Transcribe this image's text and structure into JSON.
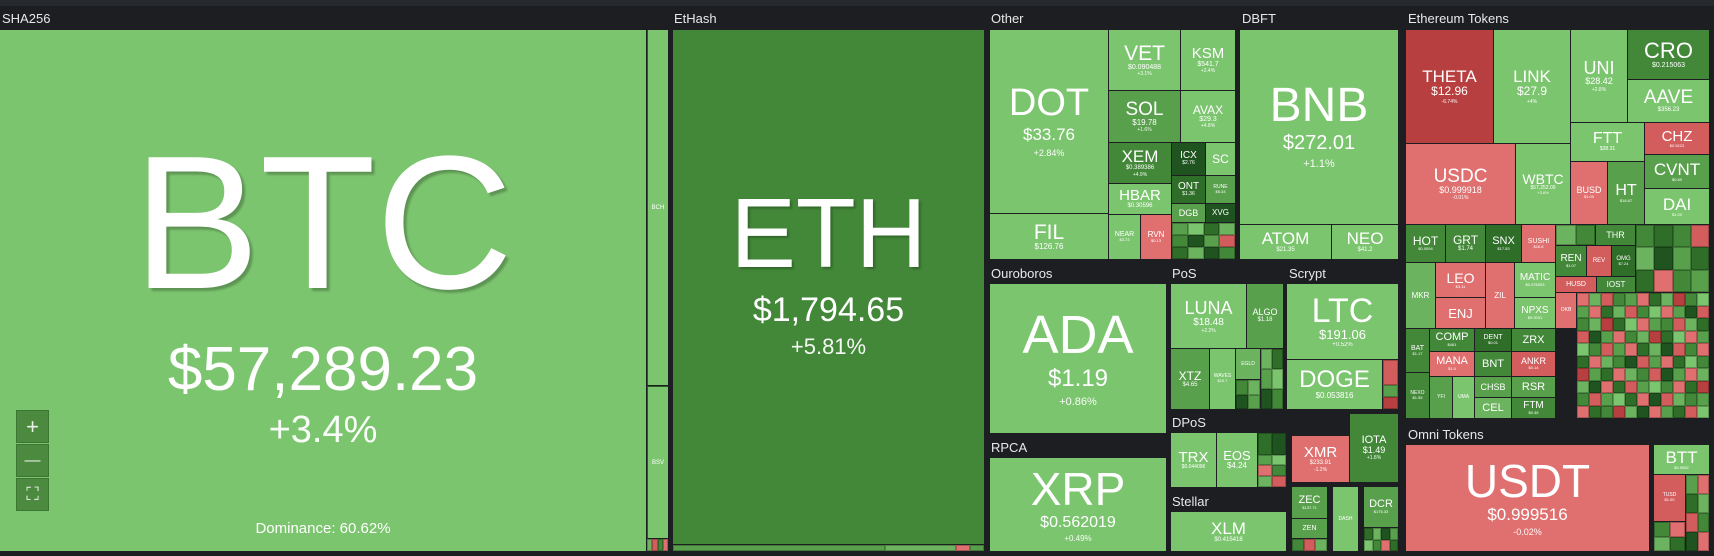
{
  "groups": {
    "sha256": "SHA256",
    "ethash": "EtHash",
    "other": "Other",
    "dbft": "DBFT",
    "ethereum_tokens": "Ethereum Tokens",
    "ouroboros": "Ouroboros",
    "pos": "PoS",
    "scrypt": "Scrypt",
    "dpos": "DPoS",
    "rpca": "RPCA",
    "stellar": "Stellar",
    "omni_tokens": "Omni Tokens"
  },
  "btc": {
    "ticker": "BTC",
    "price": "$57,289.23",
    "change": "+3.4%",
    "dominance": "Dominance: 60.62%"
  },
  "eth": {
    "ticker": "ETH",
    "price": "$1,794.65",
    "change": "+5.81%"
  },
  "sha_small": {
    "bch": "BCH",
    "bsv": "BSV"
  },
  "other": {
    "dot": {
      "ticker": "DOT",
      "price": "$33.76",
      "change": "+2.84%"
    },
    "fil": {
      "ticker": "FIL",
      "price": "$126.76"
    },
    "vet": {
      "ticker": "VET",
      "price": "$0.090488",
      "change": "+3.1%"
    },
    "ksm": {
      "ticker": "KSM",
      "price": "$541.7",
      "change": "+2.4%"
    },
    "sol": {
      "ticker": "SOL",
      "price": "$19.78",
      "change": "+1.6%"
    },
    "avax": {
      "ticker": "AVAX",
      "price": "$29.3",
      "change": "+4.8%"
    },
    "xem": {
      "ticker": "XEM",
      "price": "$0.389386",
      "change": "+4.9%"
    },
    "icx": {
      "ticker": "ICX",
      "price": "$2.76"
    },
    "sc": {
      "ticker": "SC"
    },
    "hbar": {
      "ticker": "HBAR",
      "price": "$0.30596"
    },
    "ont": {
      "ticker": "ONT",
      "price": "$1.36"
    },
    "rune": {
      "ticker": "RUNE",
      "price": "$5.33"
    },
    "dgb": {
      "ticker": "DGB"
    },
    "xvg": {
      "ticker": "XVG"
    },
    "near": {
      "ticker": "NEAR",
      "price": "$3.73"
    },
    "rvn": {
      "ticker": "RVN",
      "price": "$0.13"
    }
  },
  "dbft": {
    "bnb": {
      "ticker": "BNB",
      "price": "$272.01",
      "change": "+1.1%"
    },
    "atom": {
      "ticker": "ATOM",
      "price": "$21.35"
    },
    "neo": {
      "ticker": "NEO",
      "price": "$41.2"
    }
  },
  "eth_tokens": {
    "theta": {
      "ticker": "THETA",
      "price": "$12.96",
      "change": "-6.74%"
    },
    "link": {
      "ticker": "LINK",
      "price": "$27.9",
      "change": "+4%"
    },
    "uni": {
      "ticker": "UNI",
      "price": "$28.42",
      "change": "+2.8%"
    },
    "cro": {
      "ticker": "CRO",
      "price": "$0.215063"
    },
    "aave": {
      "ticker": "AAVE",
      "price": "$356.23"
    },
    "ftt": {
      "ticker": "FTT",
      "price": "$38.31"
    },
    "chz": {
      "ticker": "CHZ",
      "price": "$0.5223"
    },
    "usdc": {
      "ticker": "USDC",
      "price": "$0.999918",
      "change": "-0.01%"
    },
    "wbtc": {
      "ticker": "WBTC",
      "price": "$57,252.09",
      "change": "+3.6%"
    },
    "busd": {
      "ticker": "BUSD",
      "price": "$1.00"
    },
    "ht": {
      "ticker": "HT",
      "price": "$16.67"
    },
    "cvnt": {
      "ticker": "CVNT",
      "price": "$0.89"
    },
    "dai": {
      "ticker": "DAI",
      "price": "$1.00"
    },
    "hot": {
      "ticker": "HOT",
      "price": "$0.0094"
    },
    "grt": {
      "ticker": "GRT",
      "price": "$1.74"
    },
    "snx": {
      "ticker": "SNX",
      "price": "$17.53"
    },
    "sushi": {
      "ticker": "SUSHI",
      "price": "$16.8"
    },
    "thr": {
      "ticker": "THR"
    },
    "leo": {
      "ticker": "LEO",
      "price": "$3.11"
    },
    "enj": {
      "ticker": "ENJ"
    },
    "ren": {
      "ticker": "REN",
      "price": "$1.07"
    },
    "rev": {
      "ticker": "REV"
    },
    "omg": {
      "ticker": "OMG",
      "price": "$7.24"
    },
    "mkr": {
      "ticker": "MKR"
    },
    "matic": {
      "ticker": "MATIC",
      "price": "$0.376903"
    },
    "husd": {
      "ticker": "HUSD"
    },
    "iost": {
      "ticker": "IOST"
    },
    "zil": {
      "ticker": "ZIL"
    },
    "npxs": {
      "ticker": "NPXS",
      "price": "$0.0031"
    },
    "okb": {
      "ticker": "OKB"
    },
    "bat": {
      "ticker": "BAT",
      "price": "$1.17"
    },
    "comp": {
      "ticker": "COMP",
      "price": "$461"
    },
    "dent": {
      "ticker": "DENT",
      "price": "$0.01"
    },
    "zrx": {
      "ticker": "ZRX"
    },
    "mana": {
      "ticker": "MANA",
      "price": "$1.0"
    },
    "bnt": {
      "ticker": "BNT"
    },
    "ankr": {
      "ticker": "ANKR",
      "price": "$0.14"
    },
    "nexo": {
      "ticker": "NEXO",
      "price": "$1.55"
    },
    "yfi": {
      "ticker": "YFI"
    },
    "uma": {
      "ticker": "UMA"
    },
    "chsb": {
      "ticker": "CHSB"
    },
    "rsr": {
      "ticker": "RSR"
    },
    "cel": {
      "ticker": "CEL"
    },
    "ftm": {
      "ticker": "FTM",
      "price": "$0.36"
    }
  },
  "ouroboros": {
    "ada": {
      "ticker": "ADA",
      "price": "$1.19",
      "change": "+0.86%"
    }
  },
  "pos": {
    "luna": {
      "ticker": "LUNA",
      "price": "$18.48",
      "change": "+2.2%"
    },
    "algo": {
      "ticker": "ALGO",
      "price": "$1.18"
    },
    "xtz": {
      "ticker": "XTZ",
      "price": "$4.65"
    },
    "waves": {
      "ticker": "WAVES",
      "price": "$10.7"
    },
    "egld": {
      "ticker": "EGLD"
    }
  },
  "scrypt": {
    "ltc": {
      "ticker": "LTC",
      "price": "$191.06",
      "change": "+0.52%"
    },
    "doge": {
      "ticker": "DOGE",
      "price": "$0.053816"
    }
  },
  "dpos": {
    "trx": {
      "ticker": "TRX",
      "price": "$0.044096"
    },
    "eos": {
      "ticker": "EOS",
      "price": "$4.24"
    }
  },
  "misc": {
    "xmr": {
      "ticker": "XMR",
      "price": "$233.91",
      "change": "-1.2%"
    },
    "iota": {
      "ticker": "IOTA",
      "price": "$1.49",
      "change": "+1.8%"
    },
    "zec": {
      "ticker": "ZEC",
      "price": "$137.71"
    },
    "dash": {
      "ticker": "DASH"
    },
    "dcr": {
      "ticker": "DCR",
      "price": "$175.33"
    },
    "zen": {
      "ticker": "ZEN"
    }
  },
  "rpca": {
    "xrp": {
      "ticker": "XRP",
      "price": "$0.562019",
      "change": "+0.49%"
    }
  },
  "stellar": {
    "xlm": {
      "ticker": "XLM",
      "price": "$0.415418"
    }
  },
  "omni": {
    "usdt": {
      "ticker": "USDT",
      "price": "$0.999516",
      "change": "-0.02%"
    },
    "btt": {
      "ticker": "BTT",
      "price": "$0.0082"
    },
    "tusd": {
      "ticker": "TUSD",
      "price": "$1.00"
    }
  },
  "controls": {
    "zoom_in": "+",
    "zoom_out": "—",
    "fullscreen": "⛶"
  }
}
